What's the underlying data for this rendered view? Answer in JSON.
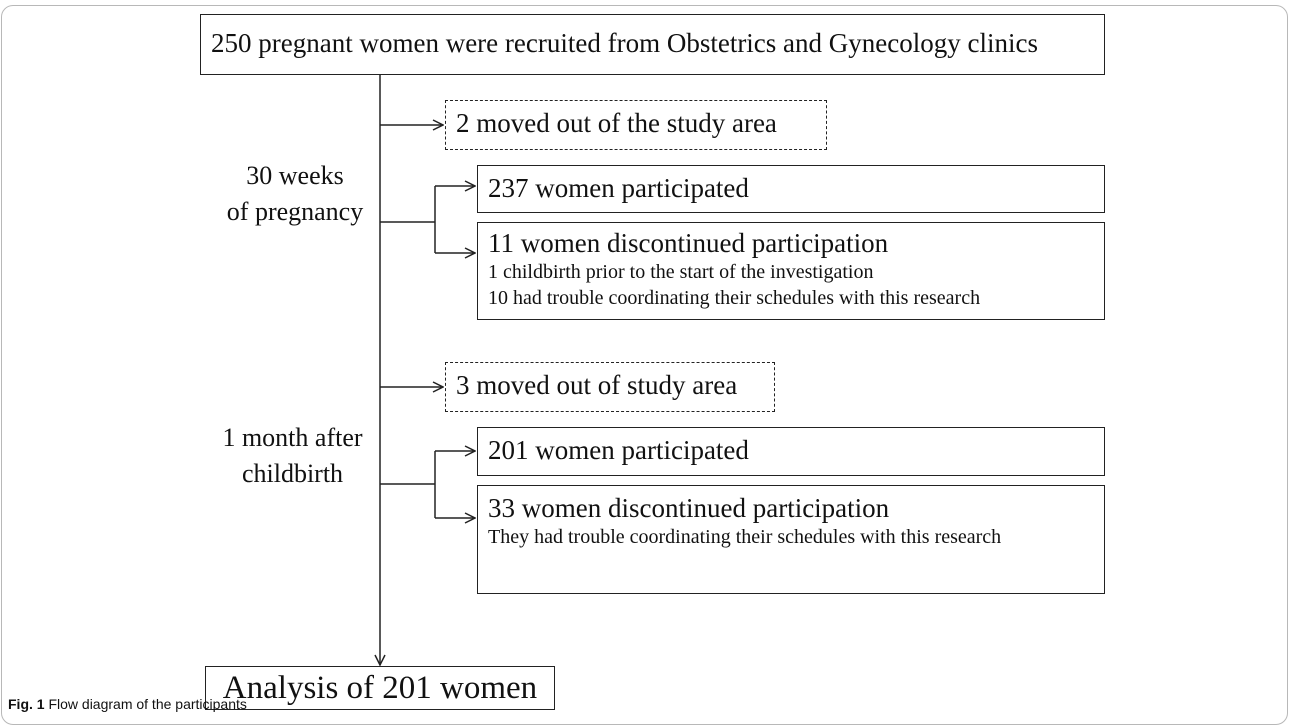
{
  "nodes": [
    {
      "label": "250 pregnant women were recruited from Obstetrics and Gynecology clinics"
    },
    {
      "label": "2 moved out of the study area"
    },
    {
      "label": "237 women participated"
    },
    {
      "label": "11 women discontinued participation",
      "details": [
        "1 childbirth prior to the start of the investigation",
        "10 had trouble coordinating their schedules with this research"
      ]
    },
    {
      "label": "3 moved out of study area"
    },
    {
      "label": "201 women participated"
    },
    {
      "label": "33 women discontinued participation",
      "details": [
        "They had trouble coordinating their schedules with this research"
      ]
    },
    {
      "label": "Analysis of 201 women"
    }
  ],
  "stages": [
    {
      "lines": [
        "30 weeks",
        "of pregnancy"
      ]
    },
    {
      "lines": [
        "1 month after",
        "childbirth"
      ]
    }
  ],
  "caption": {
    "label": "Fig. 1",
    "text": "Flow diagram of the participants"
  }
}
